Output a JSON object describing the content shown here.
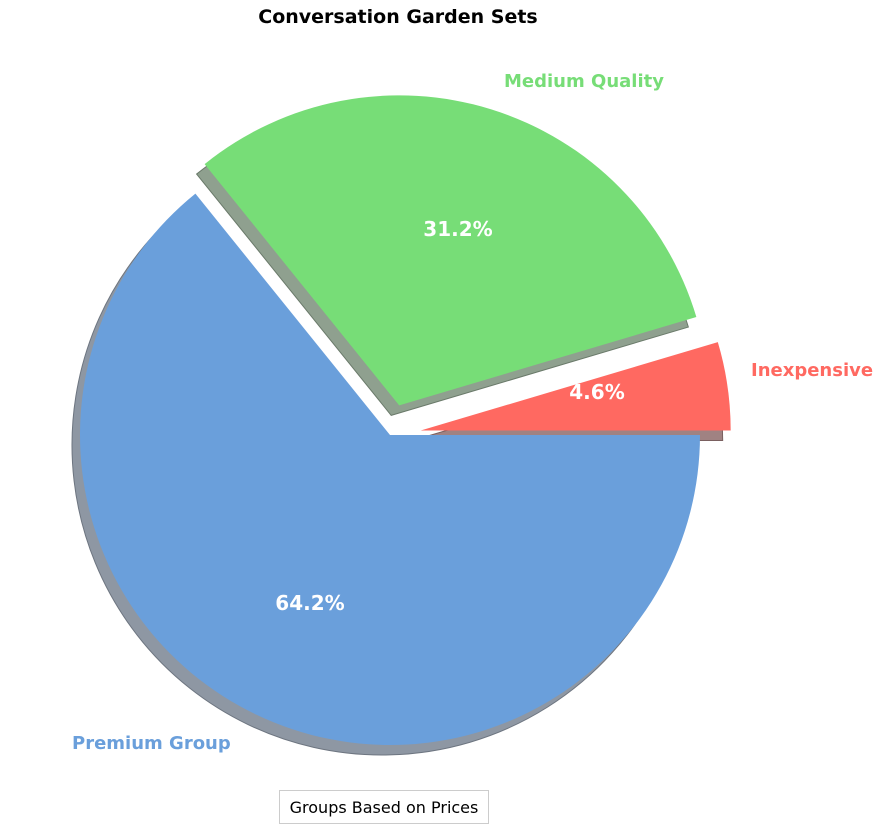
{
  "chart_data": {
    "type": "pie",
    "title": "Conversation Garden Sets",
    "categories": [
      "Inexpensive",
      "Medium Quality",
      "Premium Group"
    ],
    "values": [
      4.6,
      31.2,
      64.2
    ],
    "value_labels": [
      "4.6%",
      "31.2%",
      "64.2%"
    ],
    "colors": [
      "#ff6961",
      "#77dd77",
      "#6a9fdb"
    ],
    "explode": [
      0.1,
      0.1,
      0
    ],
    "shadow": true,
    "startangle": 0,
    "legend": {
      "title": "Groups Based on Prices",
      "position": "lower center"
    }
  },
  "title": "Conversation Garden Sets",
  "legend": {
    "title": "Groups Based on Prices"
  },
  "slices": [
    {
      "label": "Inexpensive",
      "pct": "4.6%",
      "color": "#ff6961"
    },
    {
      "label": "Medium Quality",
      "pct": "31.2%",
      "color": "#77dd77"
    },
    {
      "label": "Premium Group",
      "pct": "64.2%",
      "color": "#6a9fdb"
    }
  ]
}
